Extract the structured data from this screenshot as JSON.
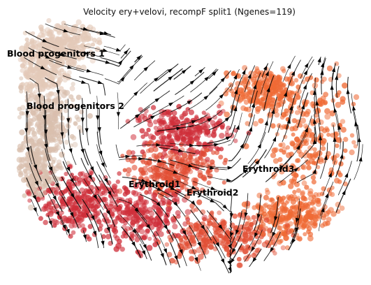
{
  "chart_data": {
    "type": "scatter",
    "title": "Velocity ery+velovi, recompF split1 (Ngenes=119)",
    "xlabel": "",
    "ylabel": "",
    "grid": false,
    "legend": "none",
    "overlay": "velocity streamlines",
    "colors": {
      "Blood progenitors 1": "#e3c9b8",
      "Blood progenitors 2": "#d9bfae",
      "Erythroid1": "#cf2f3a",
      "Erythroid2": "#e24f35",
      "Erythroid3": "#ef6a35"
    },
    "clusters": [
      {
        "name": "Blood progenitors 1"
      },
      {
        "name": "Blood progenitors 2"
      },
      {
        "name": "Erythroid1"
      },
      {
        "name": "Erythroid2"
      },
      {
        "name": "Erythroid3"
      }
    ]
  }
}
